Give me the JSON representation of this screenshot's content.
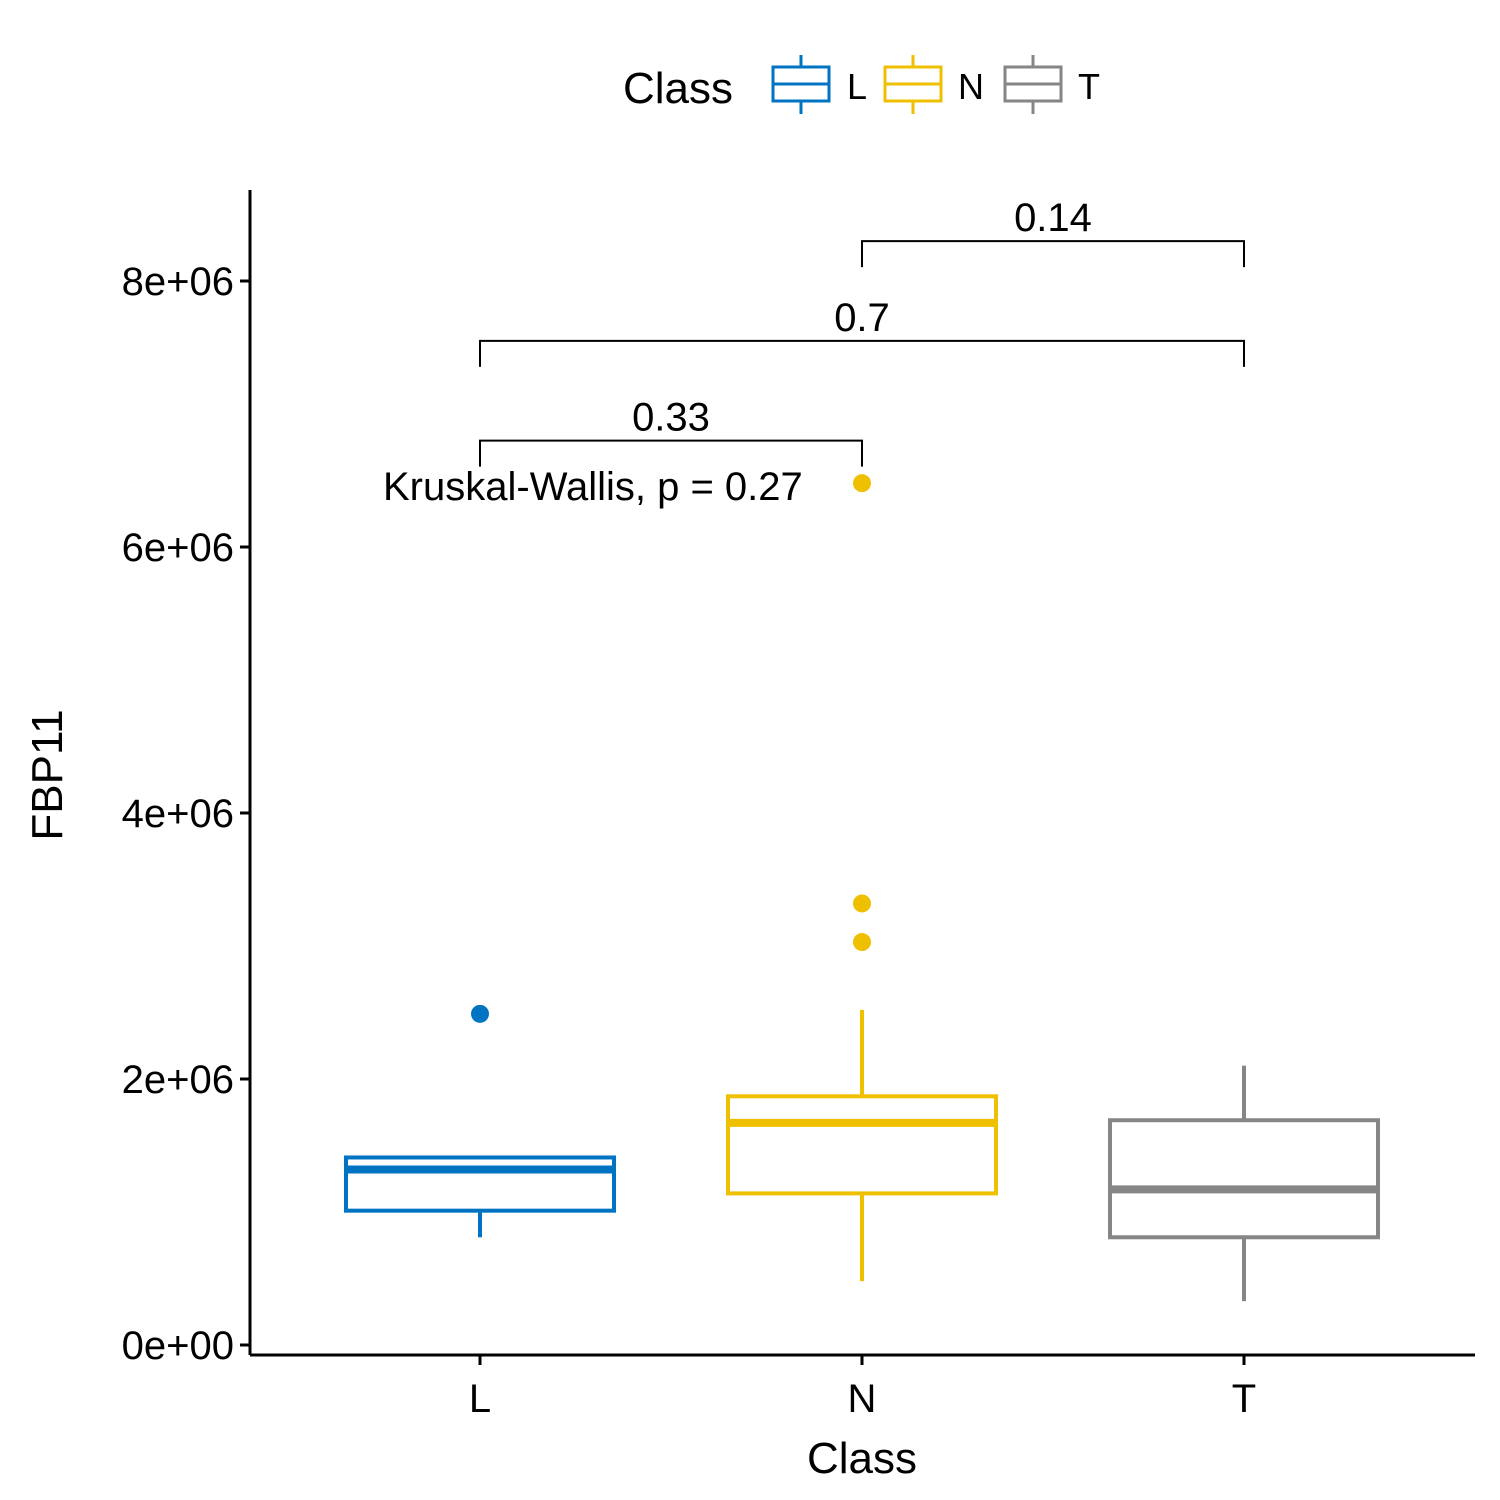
{
  "chart_data": {
    "type": "box",
    "xlabel": "Class",
    "ylabel": "FBP11",
    "categories": [
      "L",
      "N",
      "T"
    ],
    "ylim": [
      -100000,
      8700000
    ],
    "y_ticks": [
      0,
      2000000,
      4000000,
      6000000,
      8000000
    ],
    "y_tick_labels": [
      "0e+00",
      "2e+06",
      "4e+06",
      "6e+06",
      "8e+06"
    ],
    "legend": {
      "title": "Class",
      "position": "top",
      "entries": [
        {
          "label": "L",
          "color": "#0073C2"
        },
        {
          "label": "N",
          "color": "#EFC000"
        },
        {
          "label": "T",
          "color": "#868686"
        }
      ]
    },
    "boxes": [
      {
        "category": "L",
        "color": "#0073C2",
        "whisker_low": 810000,
        "q1": 1010000,
        "median": 1320000,
        "q3": 1410000,
        "whisker_high": 1410000,
        "outliers": [
          2490000
        ]
      },
      {
        "category": "N",
        "color": "#EFC000",
        "whisker_low": 480000,
        "q1": 1140000,
        "median": 1670000,
        "q3": 1870000,
        "whisker_high": 2520000,
        "outliers": [
          3320000,
          3030000,
          6480000
        ]
      },
      {
        "category": "T",
        "color": "#868686",
        "whisker_low": 330000,
        "q1": 810000,
        "median": 1170000,
        "q3": 1690000,
        "whisker_high": 2100000,
        "outliers": []
      }
    ],
    "comparisons": [
      {
        "from": "L",
        "to": "N",
        "y": 6800000,
        "label": "0.33"
      },
      {
        "from": "L",
        "to": "T",
        "y": 7550000,
        "label": "0.7"
      },
      {
        "from": "N",
        "to": "T",
        "y": 8300000,
        "label": "0.14"
      }
    ],
    "annotation": {
      "text": "Kruskal-Wallis, p = 0.27",
      "x": "L",
      "y": 6480000
    },
    "grid": false
  }
}
